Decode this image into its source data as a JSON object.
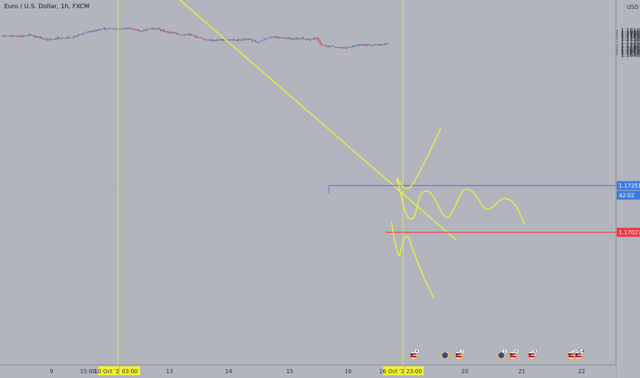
{
  "header": {
    "title": "Euro / U.S. Dollar, 1h, FXCM"
  },
  "price_axis": {
    "currency": "USD"
  },
  "colors": {
    "background": "#b2b5be",
    "bull": "#3d8fe0",
    "bear": "#e8505b",
    "drawing": "#f2f230",
    "resistance": "#3d7be0",
    "support": "#f23645"
  },
  "chart_data": {
    "type": "candlestick",
    "title": "Euro / U.S. Dollar, 1h, FXCM",
    "ylim": [
      1.1638,
      1.1822
    ],
    "y_ticks": [
      "1.18100",
      "1.18000",
      "1.17900",
      "1.17800",
      "1.17700",
      "1.17600",
      "1.17500",
      "1.17300",
      "1.17100",
      "1.17000",
      "1.16900",
      "1.16800",
      "1.16700",
      "1.16600",
      "1.16500",
      "1.16400"
    ],
    "x_ticks": [
      "9",
      "15:00",
      "13",
      "14",
      "15",
      "16",
      "20",
      "21",
      "22"
    ],
    "x_highlights": [
      "10 Oct '20",
      "03:00",
      "16 Oct '20",
      "23:00"
    ],
    "price_labels": [
      {
        "id": "resistance",
        "value": "1.17251"
      },
      {
        "id": "countdown",
        "value": "42:02"
      },
      {
        "id": "support",
        "value": "1.17027"
      }
    ],
    "events": [
      {
        "flag": "us",
        "count": "4"
      },
      {
        "flag": "eu",
        "count": ""
      },
      {
        "flag": "us",
        "count": "3"
      },
      {
        "flag": "eu",
        "count": "2"
      },
      {
        "flag": "us",
        "count": "6"
      },
      {
        "flag": "us",
        "count": "8"
      },
      {
        "flag": "us",
        "count": "5"
      },
      {
        "flag": "us",
        "count": "14"
      }
    ],
    "anchors": [
      [
        0,
        1.1772
      ],
      [
        6,
        1.1773
      ],
      [
        12,
        1.1768
      ],
      [
        17,
        1.178
      ],
      [
        22,
        1.176
      ],
      [
        27,
        1.1745
      ],
      [
        32,
        1.1752
      ],
      [
        37,
        1.1758
      ],
      [
        42,
        1.1762
      ],
      [
        47,
        1.1785
      ],
      [
        52,
        1.1803
      ],
      [
        57,
        1.1815
      ],
      [
        62,
        1.1822
      ],
      [
        67,
        1.182
      ],
      [
        72,
        1.1822
      ],
      [
        77,
        1.1818
      ],
      [
        82,
        1.1805
      ],
      [
        87,
        1.182
      ],
      [
        92,
        1.1822
      ],
      [
        97,
        1.18
      ],
      [
        102,
        1.179
      ],
      [
        107,
        1.1775
      ],
      [
        112,
        1.1783
      ],
      [
        117,
        1.1755
      ],
      [
        121,
        1.1745
      ],
      [
        126,
        1.1742
      ],
      [
        131,
        1.1748
      ],
      [
        136,
        1.1745
      ],
      [
        141,
        1.1742
      ],
      [
        146,
        1.175
      ],
      [
        151,
        1.173
      ],
      [
        156,
        1.1755
      ],
      [
        161,
        1.1765
      ],
      [
        166,
        1.1755
      ],
      [
        171,
        1.1748
      ],
      [
        176,
        1.1752
      ],
      [
        181,
        1.1746
      ],
      [
        186,
        1.1755
      ],
      [
        188,
        1.1715
      ],
      [
        190,
        1.1702
      ],
      [
        195,
        1.1698
      ],
      [
        200,
        1.169
      ],
      [
        205,
        1.1695
      ],
      [
        210,
        1.1708
      ],
      [
        215,
        1.1705
      ],
      [
        220,
        1.171
      ],
      [
        225,
        1.1714
      ],
      [
        228,
        1.1722
      ]
    ]
  }
}
